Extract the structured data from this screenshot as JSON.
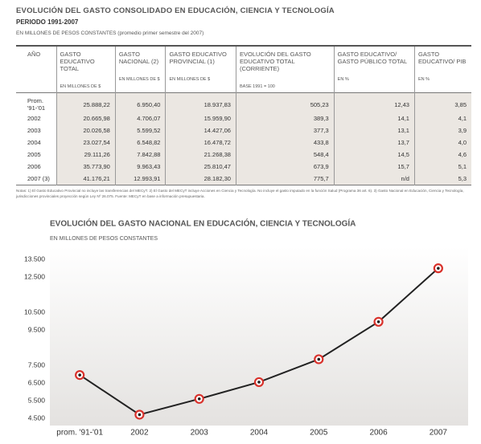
{
  "header": {
    "title": "EVOLUCIÓN DEL GASTO CONSOLIDADO EN EDUCACIÓN, CIENCIA Y TECNOLOGÍA",
    "period": "PERIODO 1991-2007",
    "units": "EN MILLONES DE PESOS CONSTANTES (promedio primer semestre del 2007)"
  },
  "table": {
    "headers": [
      {
        "title": "AÑO"
      },
      {
        "title": "GASTO EDUCATIVO TOTAL",
        "unit": "EN MILLONES DE $"
      },
      {
        "title": "GASTO NACIONAL (2)",
        "unit": "EN MILLONES DE $"
      },
      {
        "title": "GASTO EDUCATIVO PROVINCIAL (1)",
        "unit": "EN MILLONES DE $"
      },
      {
        "title": "EVOLUCIÓN DEL GASTO EDUCATIVO TOTAL (CORRIENTE)",
        "unit": "BASE 1991 = 100"
      },
      {
        "title": "GASTO EDUCATIVO/ GASTO PÚBLICO TOTAL",
        "unit": "EN %"
      },
      {
        "title": "GASTO EDUCATIVO/ PIB",
        "unit": "EN %"
      }
    ],
    "rows": [
      [
        "Prom. '91-'01",
        "25.888,22",
        "6.950,40",
        "18.937,83",
        "505,23",
        "12,43",
        "3,85"
      ],
      [
        "2002",
        "20.665,98",
        "4.706,07",
        "15.959,90",
        "389,3",
        "14,1",
        "4,1"
      ],
      [
        "2003",
        "20.026,58",
        "5.599,52",
        "14.427,06",
        "377,3",
        "13,1",
        "3,9"
      ],
      [
        "2004",
        "23.027,54",
        "6.548,82",
        "16.478,72",
        "433,8",
        "13,7",
        "4,0"
      ],
      [
        "2005",
        "29.111,26",
        "7.842,88",
        "21.268,38",
        "548,4",
        "14,5",
        "4,6"
      ],
      [
        "2006",
        "35.773,90",
        "9.963,43",
        "25.810,47",
        "673,9",
        "15,7",
        "5,1"
      ],
      [
        "2007 (3)",
        "41.176,21",
        "12.993,91",
        "28.182,30",
        "775,7",
        "n/d",
        "5,3"
      ]
    ]
  },
  "notes": "Notas: 1) El Gasto Educativo Provincial no incluye las transferencias del MECyT. 2) El Gasto del MECyT incluye Acciones en Ciencia y Tecnología. No incluye el gasto imputado en la función Salud (Programa 36 art. 6). 3) Gasto Nacional en Educación, Ciencia y Tecnología, jurisdicciones provinciales proyección según Ley Nº 26.075. Fuente: MECyT en base a información presupuestaria.",
  "chart_data": {
    "type": "line",
    "title": "EVOLUCIÓN DEL GASTO NACIONAL EN EDUCACIÓN, CIENCIA Y TECNOLOGÍA",
    "subtitle": "EN MILLONES DE PESOS CONSTANTES",
    "categories": [
      "prom. '91-'01",
      "2002",
      "2003",
      "2004",
      "2005",
      "2006",
      "2007"
    ],
    "values": [
      6950.4,
      4706.07,
      5599.52,
      6548.82,
      7842.88,
      9963.43,
      12993.91
    ],
    "color": "#222222",
    "marker_color": "#d9312b",
    "ylim": [
      4500,
      13500
    ],
    "yticks": [
      {
        "value": 4500,
        "label": "4.500"
      },
      {
        "value": 5500,
        "label": "5.500"
      },
      {
        "value": 6500,
        "label": "6.500"
      },
      {
        "value": 7500,
        "label": "7.500"
      },
      {
        "value": 9500,
        "label": "9.500"
      },
      {
        "value": 10500,
        "label": "10.500"
      },
      {
        "value": 12500,
        "label": "12.500"
      },
      {
        "value": 13500,
        "label": "13.500"
      }
    ],
    "grid": false
  }
}
